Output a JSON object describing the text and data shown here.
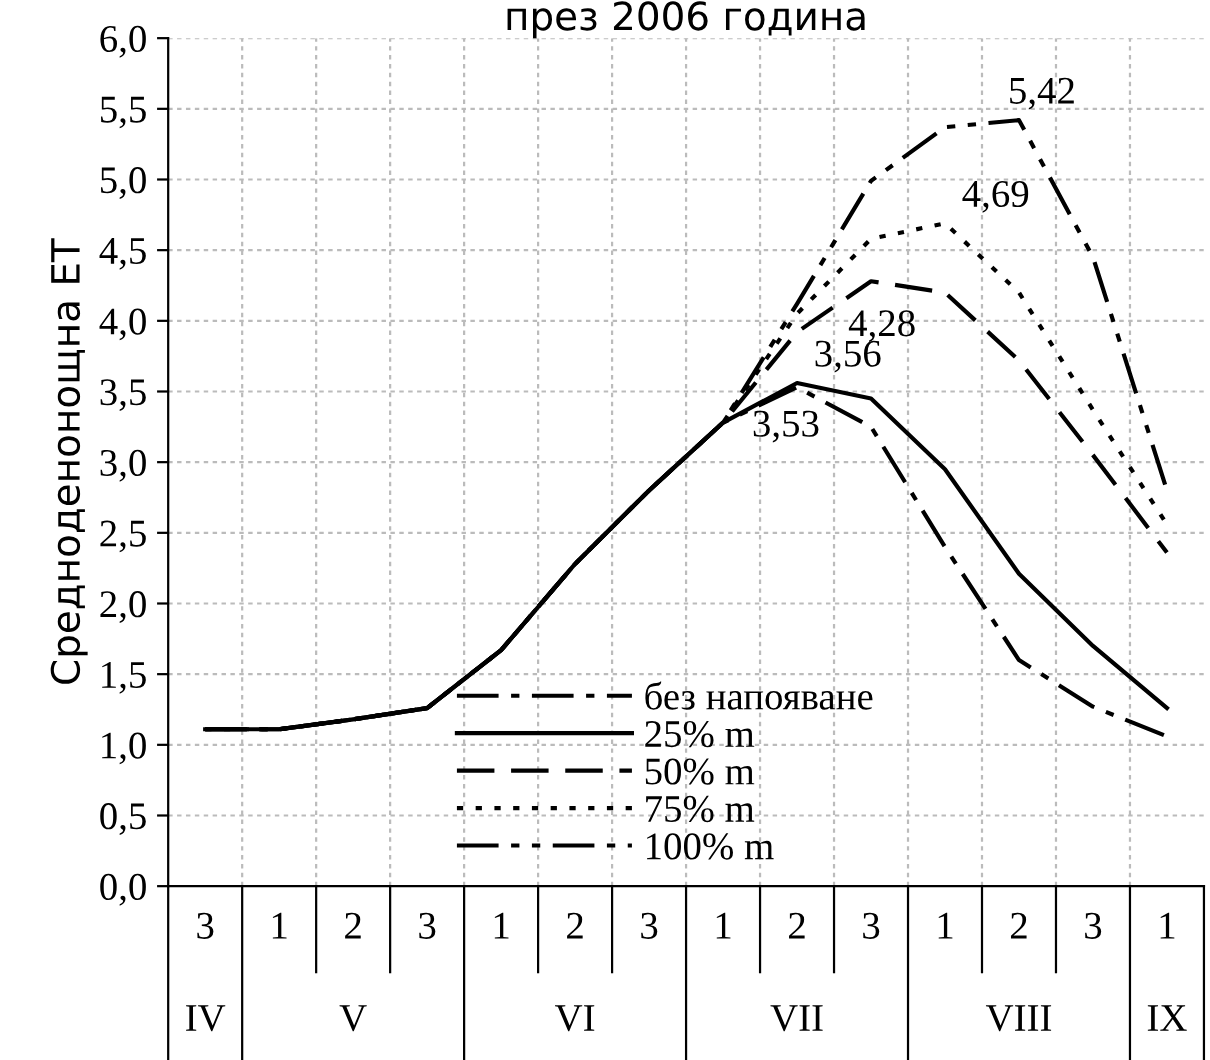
{
  "chart_data": {
    "type": "line",
    "title": "през 2006 година",
    "ylabel": "Средноденонощна ЕТ",
    "categories": [
      "3",
      "1",
      "2",
      "3",
      "1",
      "2",
      "3",
      "1",
      "2",
      "3",
      "1",
      "2",
      "3",
      "1"
    ],
    "annotations": [
      "IV",
      "V",
      "VI",
      "VII",
      "VIII",
      "IX"
    ],
    "series": [
      {
        "name": "без напояване",
        "color": "#000000",
        "line_style": "dashdot",
        "values": [
          1.11,
          1.11,
          1.18,
          1.26,
          1.67,
          2.28,
          2.8,
          3.28,
          3.53,
          3.25,
          2.4,
          1.6,
          1.27,
          1.06
        ],
        "value_labels": [
          null,
          null,
          null,
          null,
          null,
          null,
          null,
          null,
          "3,53",
          null,
          null,
          null,
          null,
          null
        ]
      },
      {
        "name": "25% m",
        "color": "#000000",
        "line_style": "solid",
        "values": [
          1.11,
          1.11,
          1.18,
          1.26,
          1.67,
          2.28,
          2.8,
          3.28,
          3.56,
          3.45,
          2.95,
          2.21,
          1.7,
          1.26
        ],
        "value_labels": [
          null,
          null,
          null,
          null,
          null,
          null,
          null,
          null,
          "3,56",
          null,
          null,
          null,
          null,
          null
        ]
      },
      {
        "name": "50% m",
        "color": "#000000",
        "line_style": "dashed",
        "values": [
          1.11,
          1.11,
          1.18,
          1.26,
          1.67,
          2.28,
          2.8,
          3.28,
          3.92,
          4.28,
          4.2,
          3.72,
          3.05,
          2.36
        ],
        "value_labels": [
          null,
          null,
          null,
          null,
          null,
          null,
          null,
          null,
          null,
          "4,28",
          null,
          null,
          null,
          null
        ]
      },
      {
        "name": "75% m",
        "color": "#000000",
        "line_style": "dotted",
        "values": [
          1.11,
          1.11,
          1.18,
          1.26,
          1.67,
          2.28,
          2.8,
          3.28,
          4.05,
          4.58,
          4.69,
          4.2,
          3.37,
          2.56
        ],
        "value_labels": [
          null,
          null,
          null,
          null,
          null,
          null,
          null,
          null,
          null,
          null,
          "4,69",
          null,
          null,
          null
        ]
      },
      {
        "name": "100% m",
        "color": "#000000",
        "line_style": "dashdotdot",
        "values": [
          1.11,
          1.11,
          1.18,
          1.26,
          1.67,
          2.28,
          2.8,
          3.28,
          4.12,
          4.99,
          5.37,
          5.42,
          4.45,
          2.8
        ],
        "value_labels": [
          null,
          null,
          null,
          null,
          null,
          null,
          null,
          null,
          null,
          null,
          null,
          "5,42",
          null,
          null
        ]
      }
    ],
    "ylim": [
      0,
      6
    ],
    "yticks": [
      {
        "value": 0,
        "label": "0,0"
      },
      {
        "value": 0.5,
        "label": "0,5"
      },
      {
        "value": 1,
        "label": "1,0"
      },
      {
        "value": 1.5,
        "label": "1,5"
      },
      {
        "value": 2,
        "label": "2,0"
      },
      {
        "value": 2.5,
        "label": "2,5"
      },
      {
        "value": 3,
        "label": "3,0"
      },
      {
        "value": 3.5,
        "label": "3,5"
      },
      {
        "value": 4,
        "label": "4,0"
      },
      {
        "value": 4.5,
        "label": "4,5"
      },
      {
        "value": 5,
        "label": "5,0"
      },
      {
        "value": 5.5,
        "label": "5,5"
      },
      {
        "value": 6,
        "label": "6,0"
      }
    ],
    "grid": true,
    "legend": "bottom"
  }
}
